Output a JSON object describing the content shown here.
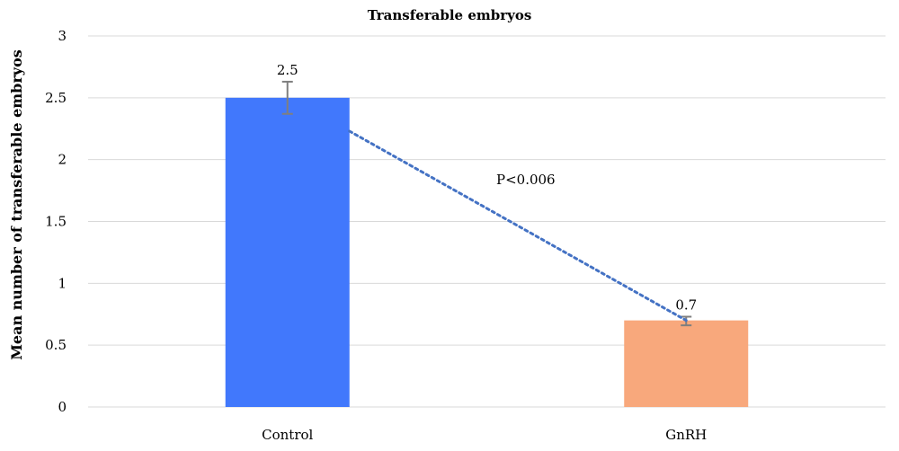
{
  "chart_data": {
    "type": "bar",
    "title": "Transferable embryos",
    "xlabel": "",
    "ylabel": "Mean number of transferable embryos",
    "ylim": [
      0,
      3
    ],
    "yticks": [
      "0",
      "0.5",
      "1",
      "1.5",
      "2",
      "2.5",
      "3"
    ],
    "categories": [
      "Control",
      "GnRH"
    ],
    "values": [
      2.5,
      0.7
    ],
    "data_labels": [
      "2.5",
      "0.7"
    ],
    "error_bars": [
      [
        2.37,
        2.63
      ],
      [
        0.66,
        0.73
      ]
    ],
    "colors": [
      "#4178fc",
      "#f8a87c"
    ],
    "trendline": {
      "style": "dotted",
      "color": "#4472c4",
      "from": [
        0,
        2.23
      ],
      "to": [
        1,
        0.7
      ]
    },
    "annotation": "P<0.006",
    "grid": true,
    "legend": "none"
  }
}
